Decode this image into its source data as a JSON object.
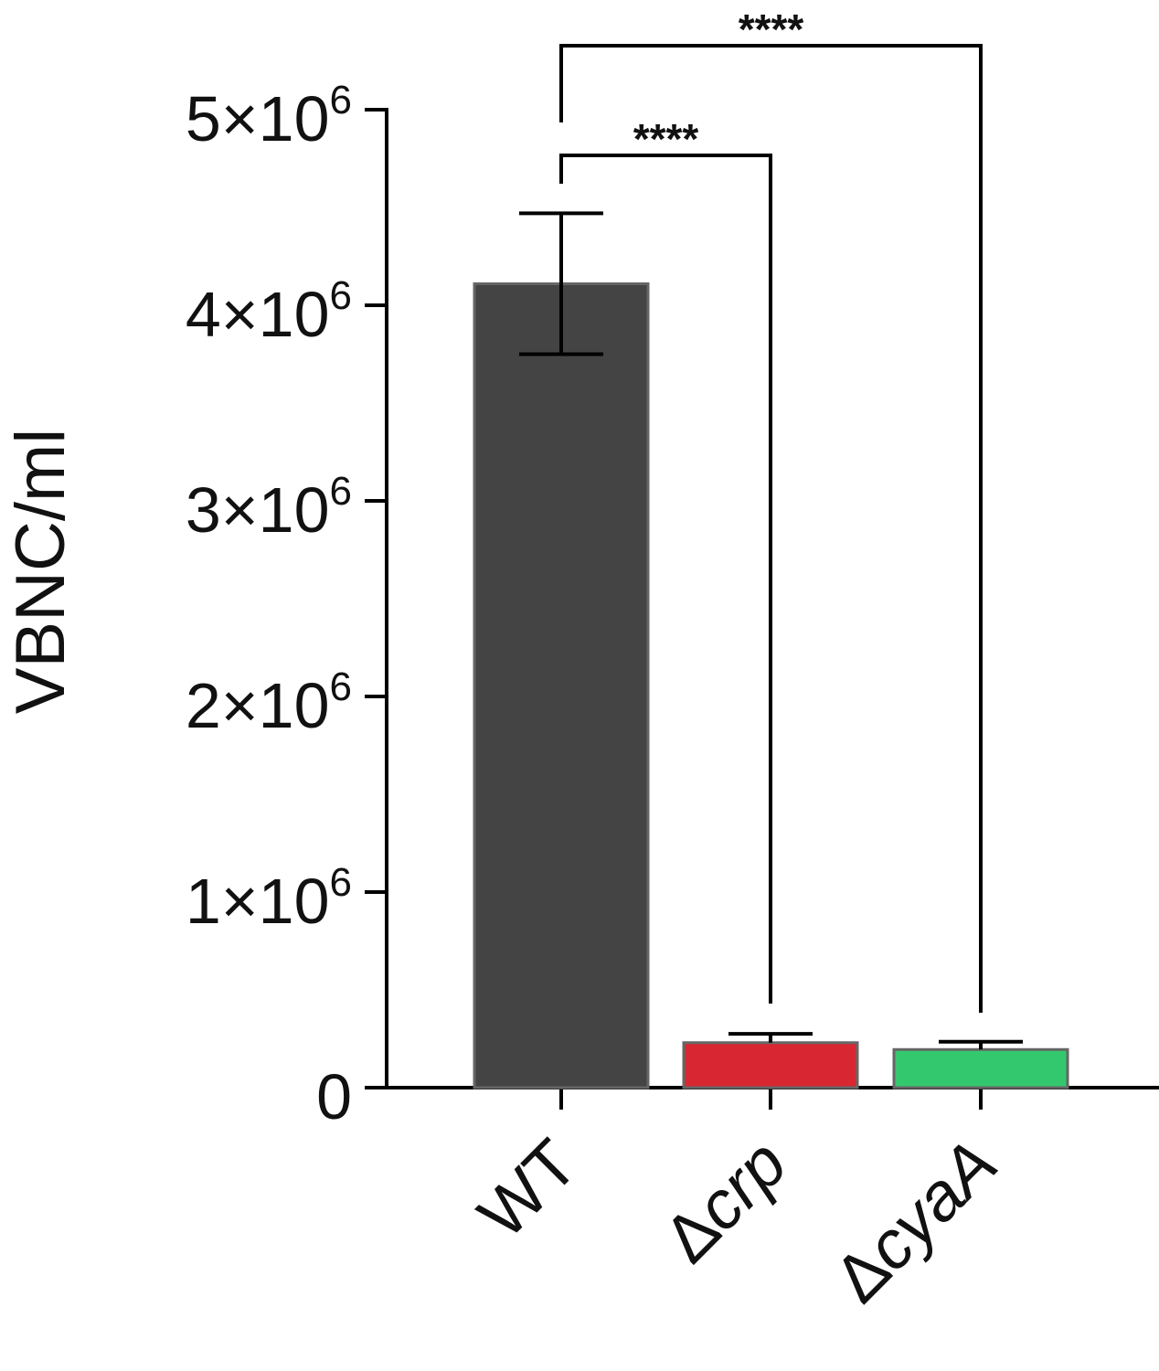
{
  "chart_data": {
    "type": "bar",
    "title": "",
    "xlabel": "",
    "ylabel": "VBNC/ml",
    "ylim": [
      0,
      5000000
    ],
    "yticks": [
      {
        "value": 0,
        "base": "0",
        "exp": ""
      },
      {
        "value": 1000000,
        "base": "1×10",
        "exp": "6"
      },
      {
        "value": 2000000,
        "base": "2×10",
        "exp": "6"
      },
      {
        "value": 3000000,
        "base": "3×10",
        "exp": "6"
      },
      {
        "value": 4000000,
        "base": "4×10",
        "exp": "6"
      },
      {
        "value": 5000000,
        "base": "5×10",
        "exp": "6"
      }
    ],
    "categories": [
      {
        "prefix": "",
        "name": "WT",
        "italic": false
      },
      {
        "prefix": "Δ",
        "name": "crp",
        "italic": true
      },
      {
        "prefix": "Δ",
        "name": "cyaA",
        "italic": true
      }
    ],
    "values": [
      4110000,
      230000,
      195000
    ],
    "errors": [
      360000,
      45000,
      40000
    ],
    "colors": [
      "#444444",
      "#d82732",
      "#34c86e"
    ],
    "significance": [
      {
        "from": 0,
        "to": 1,
        "label": "****"
      },
      {
        "from": 0,
        "to": 2,
        "label": "****"
      }
    ],
    "grid": false,
    "legend": "none"
  }
}
